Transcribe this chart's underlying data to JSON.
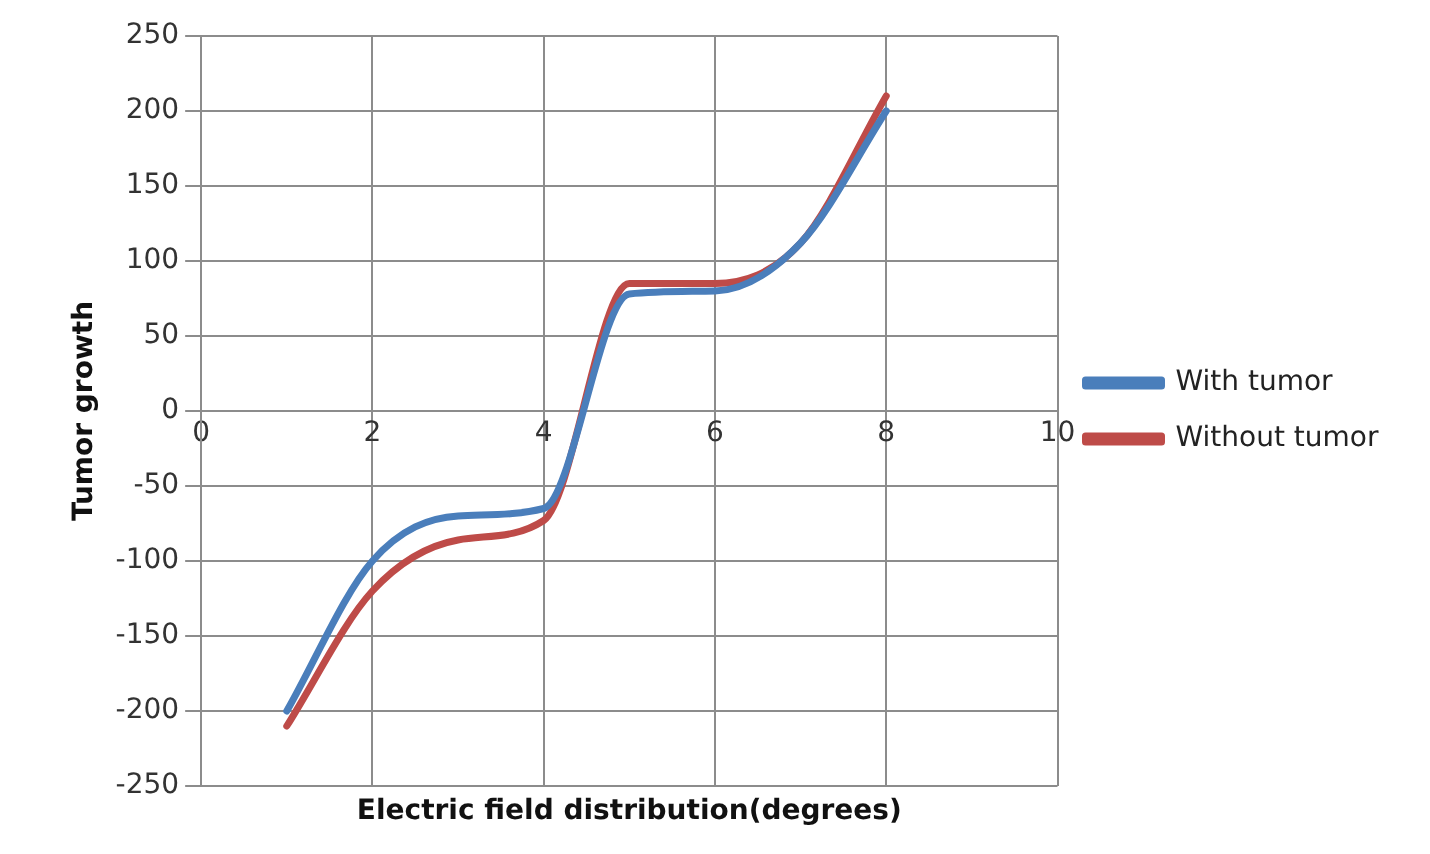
{
  "chart_data": {
    "type": "line",
    "xlabel": "Electric field distribution(degrees)",
    "ylabel": "Tumor growth",
    "x": [
      1,
      2,
      3,
      4,
      5,
      6,
      7,
      8
    ],
    "series": [
      {
        "name": "With tumor",
        "color": "#4a7ebb",
        "values": [
          -200,
          -100,
          -70,
          -65,
          78,
          80,
          112,
          200
        ]
      },
      {
        "name": "Without tumor",
        "color": "#be4b48",
        "values": [
          -210,
          -120,
          -86,
          -73,
          85,
          85,
          112,
          210
        ]
      }
    ],
    "xlim": [
      0,
      10
    ],
    "xticks": [
      0,
      2,
      4,
      6,
      8,
      10
    ],
    "ylim": [
      -250,
      250
    ],
    "yticks": [
      -250,
      -200,
      -150,
      -100,
      -50,
      0,
      50,
      100,
      150,
      200,
      250
    ],
    "grid": true,
    "legend": "right",
    "marker": "none",
    "line_style": "solid"
  }
}
